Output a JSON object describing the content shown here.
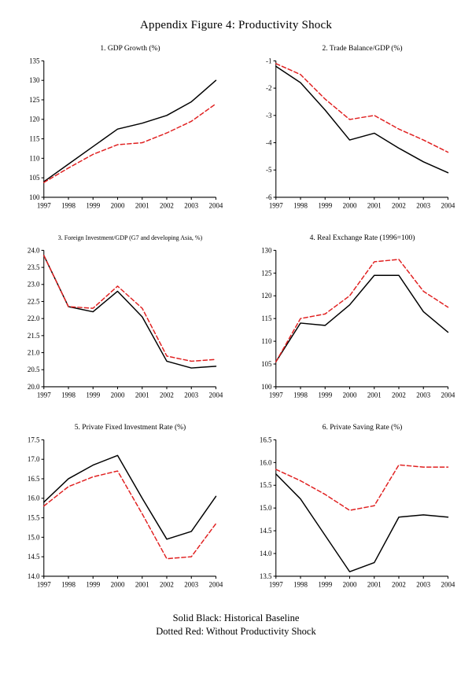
{
  "figure_title": "Appendix Figure 4: Productivity Shock",
  "legend": {
    "line1": "Solid Black: Historical Baseline",
    "line2": "Dotted Red: Without Productivity Shock"
  },
  "colors": {
    "baseline": "#000000",
    "shock": "#e01f1f"
  },
  "chart_data": [
    {
      "type": "line",
      "title": "1. GDP Growth (%)",
      "categories": [
        "1997",
        "1998",
        "1999",
        "2000",
        "2001",
        "2002",
        "2003",
        "2004"
      ],
      "ylim": [
        100,
        135
      ],
      "ystep": 5,
      "ydecimals": 0,
      "series": [
        {
          "name": "Historical Baseline",
          "color": "#000000",
          "dashed": false,
          "values": [
            104,
            108.5,
            113,
            117.5,
            119,
            121,
            124.5,
            130
          ]
        },
        {
          "name": "Without Productivity Shock",
          "color": "#e01f1f",
          "dashed": true,
          "values": [
            103.8,
            107.5,
            111,
            113.5,
            114,
            116.5,
            119.5,
            124
          ]
        }
      ]
    },
    {
      "type": "line",
      "title": "2. Trade Balance/GDP (%)",
      "categories": [
        "1997",
        "1998",
        "1999",
        "2000",
        "2001",
        "2002",
        "2003",
        "2004"
      ],
      "ylim": [
        -6,
        -1
      ],
      "ystep": 1,
      "ydecimals": 0,
      "series": [
        {
          "name": "Historical Baseline",
          "color": "#000000",
          "dashed": false,
          "values": [
            -1.2,
            -1.8,
            -2.8,
            -3.9,
            -3.65,
            -4.2,
            -4.7,
            -5.1
          ]
        },
        {
          "name": "Without Productivity Shock",
          "color": "#e01f1f",
          "dashed": true,
          "values": [
            -1.1,
            -1.5,
            -2.4,
            -3.15,
            -3.0,
            -3.5,
            -3.9,
            -4.35
          ]
        }
      ]
    },
    {
      "type": "line",
      "title": "3. Foreign Investment/GDP (G7 and developing Asia, %)",
      "categories": [
        "1997",
        "1998",
        "1999",
        "2000",
        "2001",
        "2002",
        "2003",
        "2004"
      ],
      "ylim": [
        20.0,
        24.0
      ],
      "ystep": 0.5,
      "ydecimals": 1,
      "series": [
        {
          "name": "Historical Baseline",
          "color": "#000000",
          "dashed": false,
          "values": [
            23.85,
            22.35,
            22.2,
            22.8,
            22.05,
            20.75,
            20.55,
            20.6
          ]
        },
        {
          "name": "Without Productivity Shock",
          "color": "#e01f1f",
          "dashed": true,
          "values": [
            23.85,
            22.35,
            22.3,
            22.95,
            22.3,
            20.9,
            20.75,
            20.8
          ]
        }
      ]
    },
    {
      "type": "line",
      "title": "4. Real Exchange Rate (1996=100)",
      "categories": [
        "1997",
        "1998",
        "1999",
        "2000",
        "2001",
        "2002",
        "2003",
        "2004"
      ],
      "ylim": [
        100,
        130
      ],
      "ystep": 5,
      "ydecimals": 0,
      "series": [
        {
          "name": "Historical Baseline",
          "color": "#000000",
          "dashed": false,
          "values": [
            105.5,
            114,
            113.5,
            118,
            124.5,
            124.5,
            116.5,
            112
          ]
        },
        {
          "name": "Without Productivity Shock",
          "color": "#e01f1f",
          "dashed": true,
          "values": [
            105.5,
            115,
            116,
            120,
            127.5,
            128,
            121,
            117.5
          ]
        }
      ]
    },
    {
      "type": "line",
      "title": "5. Private Fixed Investment Rate (%)",
      "categories": [
        "1997",
        "1998",
        "1999",
        "2000",
        "2001",
        "2002",
        "2003",
        "2004"
      ],
      "ylim": [
        14.0,
        17.5
      ],
      "ystep": 0.5,
      "ydecimals": 1,
      "series": [
        {
          "name": "Historical Baseline",
          "color": "#000000",
          "dashed": false,
          "values": [
            15.9,
            16.5,
            16.85,
            17.1,
            16.0,
            14.95,
            15.15,
            16.05
          ]
        },
        {
          "name": "Without Productivity Shock",
          "color": "#e01f1f",
          "dashed": true,
          "values": [
            15.8,
            16.3,
            16.55,
            16.7,
            15.6,
            14.45,
            14.5,
            15.35
          ]
        }
      ]
    },
    {
      "type": "line",
      "title": "6. Private Saving Rate (%)",
      "categories": [
        "1997",
        "1998",
        "1999",
        "2000",
        "2001",
        "2002",
        "2003",
        "2004"
      ],
      "ylim": [
        13.5,
        16.5
      ],
      "ystep": 0.5,
      "ydecimals": 1,
      "series": [
        {
          "name": "Historical Baseline",
          "color": "#000000",
          "dashed": false,
          "values": [
            15.75,
            15.2,
            14.4,
            13.6,
            13.8,
            14.8,
            14.85,
            14.8
          ]
        },
        {
          "name": "Without Productivity Shock",
          "color": "#e01f1f",
          "dashed": true,
          "values": [
            15.85,
            15.6,
            15.3,
            14.95,
            15.05,
            15.95,
            15.9,
            15.9
          ]
        }
      ]
    }
  ]
}
